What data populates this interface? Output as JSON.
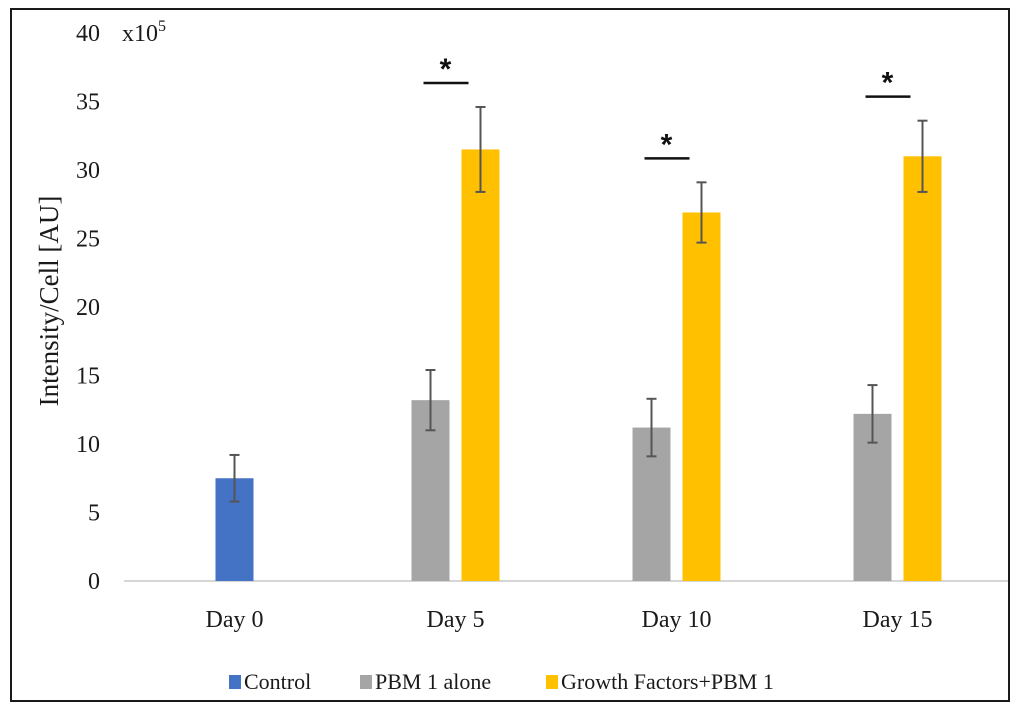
{
  "chart_data": {
    "type": "bar",
    "ylabel": "Intensity/Cell [AU]",
    "y_multiplier_label": "x10",
    "y_multiplier_exponent": "5",
    "ylim": [
      0,
      40
    ],
    "y_ticks": [
      "0",
      "5",
      "10",
      "15",
      "20",
      "25",
      "30",
      "35",
      "40"
    ],
    "categories": [
      "Day 0",
      "Day 5",
      "Day 10",
      "Day 15"
    ],
    "series": [
      {
        "name": "Control",
        "color": "#4472C4",
        "values": [
          7.5,
          null,
          null,
          null
        ],
        "errors": [
          1.7,
          null,
          null,
          null
        ]
      },
      {
        "name": "PBM 1 alone",
        "color": "#A5A5A5",
        "values": [
          null,
          13.2,
          11.2,
          12.2
        ],
        "errors": [
          null,
          2.2,
          2.1,
          2.1
        ]
      },
      {
        "name": "Growth Factors+PBM 1",
        "color": "#FFC000",
        "values": [
          null,
          31.5,
          26.9,
          31.0
        ],
        "errors": [
          null,
          3.1,
          2.2,
          2.6
        ]
      }
    ],
    "significance": [
      {
        "category": "Day 5",
        "label": "*"
      },
      {
        "category": "Day 10",
        "label": "*"
      },
      {
        "category": "Day 15",
        "label": "*"
      }
    ],
    "legend_position": "bottom",
    "grid": false
  }
}
